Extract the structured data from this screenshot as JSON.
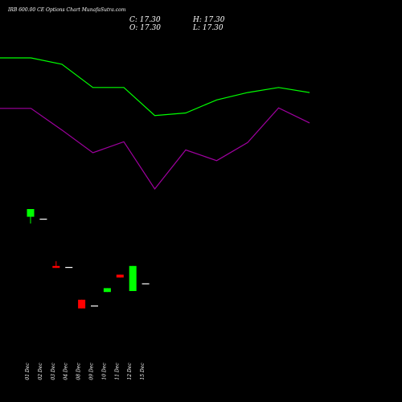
{
  "chart": {
    "title": "IRB 600.00 CE Options Chart MunafaSutra.com",
    "ohlc": {
      "c": "C: 17.30",
      "h": "H: 17.30",
      "o": "O: 17.30",
      "l": "L: 17.30"
    }
  },
  "colors": {
    "background": "#000000",
    "up": "#00ff00",
    "down": "#ff0000",
    "flat": "#ffffff",
    "line_green": "#00ff00",
    "line_purple": "#a000a0",
    "label": "#ffffff"
  },
  "chart_data": {
    "type": "candlestick",
    "categories": [
      "01 Dec",
      "02 Dec",
      "03 Dec",
      "04 Dec",
      "08 Dec",
      "09 Dec",
      "10 Dec",
      "11 Dec",
      "12 Dec",
      "15 Dec"
    ],
    "candles": [
      {
        "date": "01 Dec",
        "open": 24.2,
        "high": 25.0,
        "low": 23.5,
        "close": 25.0
      },
      {
        "date": "02 Dec",
        "open": 24.0,
        "high": 24.0,
        "low": 24.0,
        "close": 24.0
      },
      {
        "date": "03 Dec",
        "open": 19.1,
        "high": 19.6,
        "low": 18.9,
        "close": 18.9
      },
      {
        "date": "04 Dec",
        "open": 19.0,
        "high": 19.0,
        "low": 19.0,
        "close": 19.0
      },
      {
        "date": "08 Dec",
        "open": 15.6,
        "high": 15.6,
        "low": 14.7,
        "close": 14.7
      },
      {
        "date": "09 Dec",
        "open": 15.0,
        "high": 15.0,
        "low": 15.0,
        "close": 15.0
      },
      {
        "date": "10 Dec",
        "open": 16.4,
        "high": 16.8,
        "low": 16.4,
        "close": 16.8
      },
      {
        "date": "11 Dec",
        "open": 18.2,
        "high": 18.2,
        "low": 17.9,
        "close": 17.9
      },
      {
        "date": "12 Dec",
        "open": 16.5,
        "high": 19.1,
        "low": 16.5,
        "close": 19.1
      },
      {
        "date": "15 Dec",
        "open": 17.3,
        "high": 17.3,
        "low": 17.3,
        "close": 17.3
      }
    ],
    "ylim": [
      0,
      50
    ],
    "upper_line": {
      "x_range": [
        0.5,
        10.2
      ],
      "y_range": [
        0,
        100
      ],
      "values": [
        92.7,
        92.7,
        90.2,
        81.1,
        81.1,
        70.1,
        71.1,
        76.2,
        79.1,
        81.1,
        79.1
      ]
    },
    "lower_line": {
      "x_range": [
        0.5,
        10.2
      ],
      "y_range": [
        0,
        100
      ],
      "values": [
        72.9,
        72.9,
        64.4,
        55.5,
        59.8,
        41.3,
        56.6,
        52.4,
        59.5,
        73.1,
        67.2
      ]
    }
  }
}
